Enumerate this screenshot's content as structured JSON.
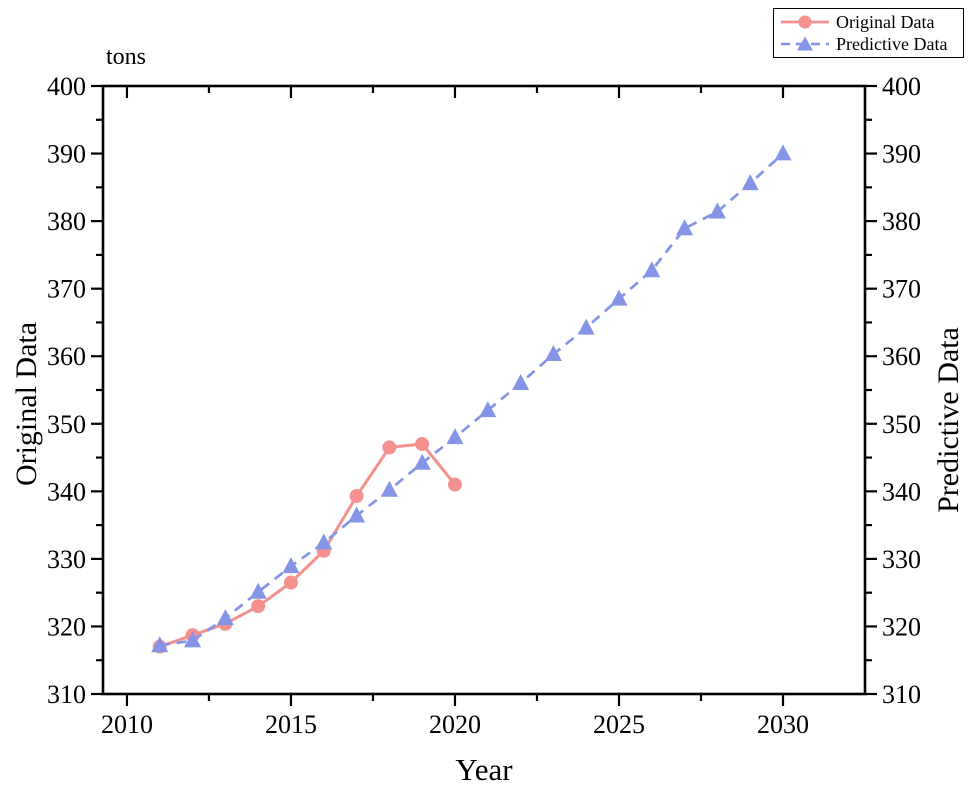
{
  "colors": {
    "original": "#f4918f",
    "predictive": "#8494e6",
    "axis": "#000000",
    "background": "#ffffff"
  },
  "labels": {
    "unit": "tons",
    "x_title": "Year",
    "y_left_title": "Original Data",
    "y_right_title": "Predictive Data"
  },
  "legend": {
    "items": [
      {
        "label": "Original Data",
        "marker": "circle-icon",
        "line": "solid"
      },
      {
        "label": "Predictive Data",
        "marker": "triangle-icon",
        "line": "dashed"
      }
    ]
  },
  "chart_data": {
    "type": "line",
    "title": "",
    "unit_label": "tons",
    "xlabel": "Year",
    "ylabel_left": "Original Data",
    "ylabel_right": "Predictive Data",
    "xlim": [
      2009.27,
      2032.5
    ],
    "ylim": [
      310,
      400
    ],
    "x_major_ticks": [
      2010,
      2015,
      2020,
      2025,
      2030
    ],
    "x_minor_ticks": [
      2012.5,
      2017.5,
      2022.5,
      2027.5
    ],
    "y_major_ticks": [
      310,
      320,
      330,
      340,
      350,
      360,
      370,
      380,
      390,
      400
    ],
    "y_minor_ticks": [
      315,
      325,
      335,
      345,
      355,
      365,
      375,
      385,
      395
    ],
    "grid": false,
    "legend_position": "top-right-outside",
    "series": [
      {
        "name": "Original Data",
        "color": "#f4918f",
        "line": "solid",
        "marker": "circle",
        "x": [
          2011,
          2012,
          2013,
          2014,
          2015,
          2016,
          2017,
          2018,
          2019,
          2020
        ],
        "y": [
          317.0,
          318.7,
          320.4,
          323.0,
          326.5,
          331.2,
          339.3,
          346.5,
          347.0,
          341.0
        ]
      },
      {
        "name": "Predictive Data",
        "color": "#8494e6",
        "line": "dashed",
        "marker": "triangle",
        "x": [
          2011,
          2012,
          2013,
          2014,
          2015,
          2016,
          2017,
          2018,
          2019,
          2020,
          2021,
          2022,
          2023,
          2024,
          2025,
          2026,
          2027,
          2028,
          2029,
          2030
        ],
        "y": [
          317.2,
          317.9,
          321.2,
          325.1,
          328.9,
          332.4,
          336.4,
          340.2,
          344.2,
          348.0,
          352.0,
          356.0,
          360.3,
          364.2,
          368.5,
          372.7,
          378.9,
          381.4,
          385.6,
          390.0
        ]
      }
    ]
  }
}
